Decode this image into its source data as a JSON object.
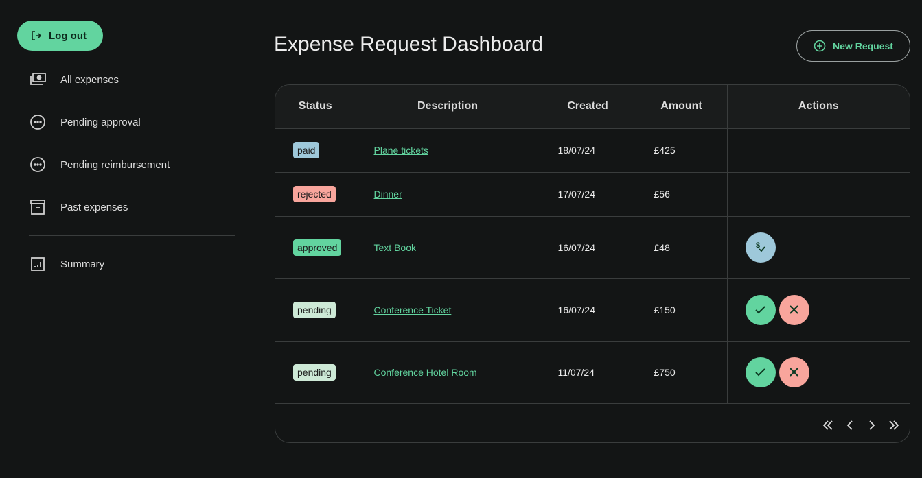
{
  "sidebar": {
    "logout": "Log out",
    "items": [
      {
        "label": "All expenses",
        "icon": "money-icon"
      },
      {
        "label": "Pending approval",
        "icon": "dots-circle-icon"
      },
      {
        "label": "Pending reimbursement",
        "icon": "dots-circle-icon"
      },
      {
        "label": "Past expenses",
        "icon": "archive-icon"
      },
      {
        "label": "Summary",
        "icon": "chart-icon"
      }
    ]
  },
  "header": {
    "title": "Expense Request Dashboard",
    "new_request": "New Request"
  },
  "table": {
    "columns": [
      "Status",
      "Description",
      "Created",
      "Amount",
      "Actions"
    ],
    "rows": [
      {
        "status": "paid",
        "description": "Plane tickets",
        "created": "18/07/24",
        "amount": "£425",
        "actions": []
      },
      {
        "status": "rejected",
        "description": "Dinner",
        "created": "17/07/24",
        "amount": "£56",
        "actions": []
      },
      {
        "status": "approved",
        "description": "Text Book",
        "created": "16/07/24",
        "amount": "£48",
        "actions": [
          "reimburse"
        ]
      },
      {
        "status": "pending",
        "description": "Conference Ticket",
        "created": "16/07/24",
        "amount": "£150",
        "actions": [
          "approve",
          "reject"
        ]
      },
      {
        "status": "pending",
        "description": "Conference Hotel Room",
        "created": "11/07/24",
        "amount": "£750",
        "actions": [
          "approve",
          "reject"
        ]
      }
    ]
  },
  "colors": {
    "paid": "#9ec8da",
    "rejected": "#f8a59c",
    "approved": "#62d49f",
    "pending": "#cde9d6",
    "accent": "#62d49f"
  }
}
